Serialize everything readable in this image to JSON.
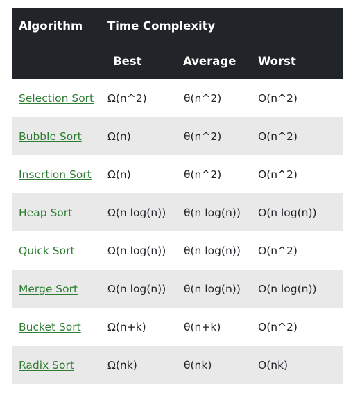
{
  "header": {
    "algorithm": "Algorithm",
    "time_complexity": "Time Complexity",
    "best": "Best",
    "average": "Average",
    "worst": "Worst"
  },
  "rows": [
    {
      "name": "Selection Sort",
      "best": "Ω(n^2)",
      "average": "θ(n^2)",
      "worst": "O(n^2)"
    },
    {
      "name": "Bubble Sort",
      "best": "Ω(n)",
      "average": "θ(n^2)",
      "worst": "O(n^2)"
    },
    {
      "name": "Insertion Sort",
      "best": "Ω(n)",
      "average": "θ(n^2)",
      "worst": "O(n^2)"
    },
    {
      "name": "Heap Sort",
      "best": "Ω(n log(n))",
      "average": "θ(n log(n))",
      "worst": "O(n log(n))"
    },
    {
      "name": "Quick Sort",
      "best": "Ω(n log(n))",
      "average": "θ(n log(n))",
      "worst": "O(n^2)"
    },
    {
      "name": "Merge Sort",
      "best": "Ω(n log(n))",
      "average": "θ(n log(n))",
      "worst": "O(n log(n))"
    },
    {
      "name": "Bucket Sort",
      "best": "Ω(n+k)",
      "average": "θ(n+k)",
      "worst": "O(n^2)"
    },
    {
      "name": "Radix Sort",
      "best": "Ω(nk)",
      "average": "θ(nk)",
      "worst": "O(nk)"
    }
  ],
  "colors": {
    "header_bg": "#212529",
    "header_text": "#ffffff",
    "link": "#2e7d32",
    "stripe": "#e9e9e9"
  }
}
